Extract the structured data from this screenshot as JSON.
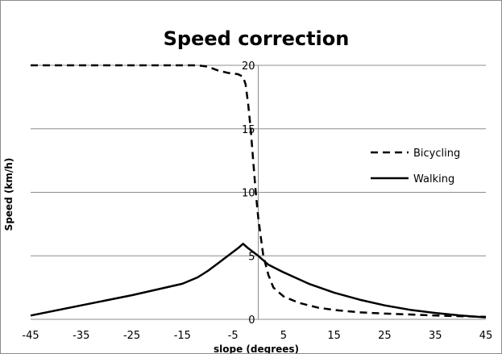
{
  "chart_data": {
    "type": "line",
    "title": "Speed correction",
    "xlabel": "slope (degrees)",
    "ylabel": "Speed (km/h)",
    "xlim": [
      -45,
      45
    ],
    "ylim": [
      0,
      20
    ],
    "x_ticks": [
      "-45",
      "-35",
      "-25",
      "-15",
      "-5",
      "5",
      "15",
      "25",
      "35",
      "45"
    ],
    "y_ticks": [
      "0",
      "5",
      "10",
      "15",
      "20"
    ],
    "grid": "horizontal",
    "legend_position": "right",
    "series": [
      {
        "name": "Bicycling",
        "style": "dashed",
        "x": [
          -45,
          -30,
          -15,
          -12,
          -10,
          -8,
          -6,
          -4,
          -3,
          -2.5,
          -2,
          -1.5,
          -1,
          -0.5,
          0,
          0.5,
          1,
          2,
          3,
          5,
          8,
          12,
          16,
          20,
          25,
          30,
          35,
          40,
          45
        ],
        "y": [
          20,
          20,
          20,
          20,
          19.9,
          19.6,
          19.4,
          19.3,
          19.1,
          18.5,
          17,
          15,
          12.5,
          10,
          8,
          6.5,
          5,
          3.5,
          2.5,
          1.8,
          1.3,
          0.9,
          0.7,
          0.55,
          0.45,
          0.38,
          0.3,
          0.25,
          0.2
        ]
      },
      {
        "name": "Walking",
        "style": "solid",
        "x": [
          -45,
          -35,
          -25,
          -15,
          -12,
          -10,
          -8,
          -6,
          -4,
          -3,
          -2,
          0,
          2,
          5,
          10,
          15,
          20,
          25,
          30,
          35,
          40,
          45
        ],
        "y": [
          0.3,
          1.1,
          1.9,
          2.8,
          3.3,
          3.8,
          4.4,
          5.0,
          5.6,
          5.95,
          5.6,
          5.0,
          4.3,
          3.7,
          2.8,
          2.1,
          1.55,
          1.1,
          0.75,
          0.5,
          0.3,
          0.15
        ]
      }
    ],
    "colors": {
      "bicycling": "#000000",
      "walking": "#000000",
      "grid": "#8c8c8c"
    }
  }
}
